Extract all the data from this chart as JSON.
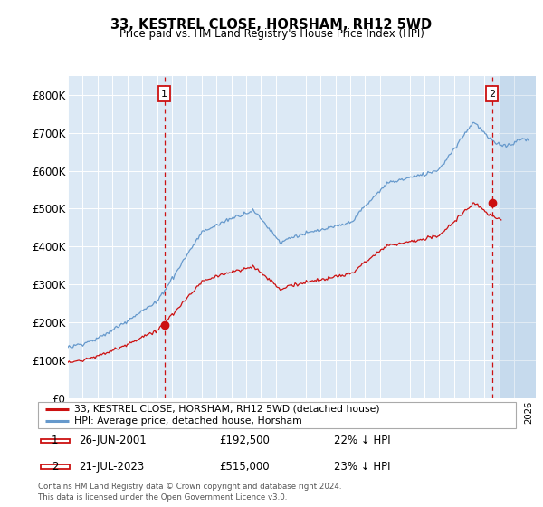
{
  "title": "33, KESTREL CLOSE, HORSHAM, RH12 5WD",
  "subtitle": "Price paid vs. HM Land Registry's House Price Index (HPI)",
  "ylim": [
    0,
    850000
  ],
  "yticks": [
    0,
    100000,
    200000,
    300000,
    400000,
    500000,
    600000,
    700000,
    800000
  ],
  "ytick_labels": [
    "£0",
    "£100K",
    "£200K",
    "£300K",
    "£400K",
    "£500K",
    "£600K",
    "£700K",
    "£800K"
  ],
  "xlim_start": 1995.0,
  "xlim_end": 2026.5,
  "background_color": "#dce9f5",
  "hpi_line_color": "#6699cc",
  "price_line_color": "#cc1111",
  "sale1_date_num": 2001.49,
  "sale1_price": 192500,
  "sale1_label": "1",
  "sale1_date_str": "26-JUN-2001",
  "sale1_price_str": "£192,500",
  "sale1_hpi_str": "22% ↓ HPI",
  "sale2_date_num": 2023.55,
  "sale2_price": 515000,
  "sale2_label": "2",
  "sale2_date_str": "21-JUL-2023",
  "sale2_price_str": "£515,000",
  "sale2_hpi_str": "23% ↓ HPI",
  "legend_label1": "33, KESTREL CLOSE, HORSHAM, RH12 5WD (detached house)",
  "legend_label2": "HPI: Average price, detached house, Horsham",
  "footer1": "Contains HM Land Registry data © Crown copyright and database right 2024.",
  "footer2": "This data is licensed under the Open Government Licence v3.0."
}
